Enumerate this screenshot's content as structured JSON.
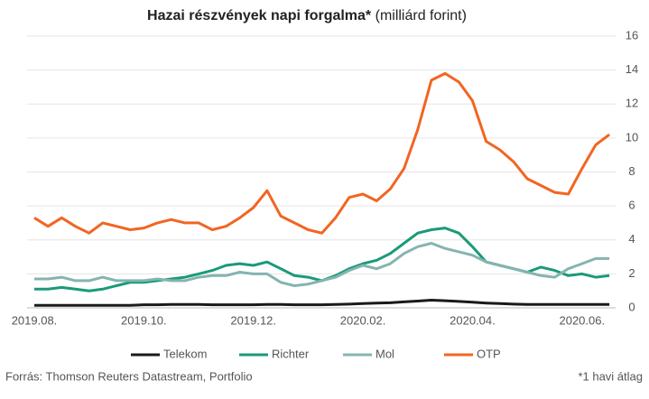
{
  "chart_data": {
    "type": "line",
    "title": "Hazai részvények napi forgalma*",
    "subtitle": "(milliárd forint)",
    "source": "Forrás: Thomson Reuters Datastream, Portfolio",
    "note": "*1 havi átlag",
    "categories": [
      "2019.08.",
      null,
      null,
      null,
      null,
      null,
      null,
      null,
      "2019.10.",
      null,
      null,
      null,
      null,
      null,
      null,
      null,
      "2019.12.",
      null,
      null,
      null,
      null,
      null,
      null,
      null,
      "2020.02.",
      null,
      null,
      null,
      null,
      null,
      null,
      null,
      "2020.04.",
      null,
      null,
      null,
      null,
      null,
      null,
      null,
      "2020.06.",
      null,
      null
    ],
    "series": [
      {
        "name": "Telekom",
        "color": "#1a1a1a",
        "values": [
          0.15,
          0.15,
          0.15,
          0.15,
          0.15,
          0.15,
          0.15,
          0.15,
          0.18,
          0.18,
          0.2,
          0.2,
          0.2,
          0.18,
          0.18,
          0.18,
          0.18,
          0.2,
          0.2,
          0.18,
          0.18,
          0.18,
          0.2,
          0.22,
          0.25,
          0.28,
          0.3,
          0.35,
          0.4,
          0.45,
          0.42,
          0.38,
          0.33,
          0.28,
          0.25,
          0.22,
          0.2,
          0.2,
          0.2,
          0.2,
          0.2,
          0.2,
          0.2
        ]
      },
      {
        "name": "Richter",
        "color": "#1a9a78",
        "values": [
          1.1,
          1.1,
          1.2,
          1.1,
          1.0,
          1.1,
          1.3,
          1.5,
          1.5,
          1.6,
          1.7,
          1.8,
          2.0,
          2.2,
          2.5,
          2.6,
          2.5,
          2.7,
          2.3,
          1.9,
          1.8,
          1.6,
          1.9,
          2.3,
          2.6,
          2.8,
          3.2,
          3.8,
          4.4,
          4.6,
          4.7,
          4.4,
          3.6,
          2.7,
          2.5,
          2.3,
          2.1,
          2.4,
          2.2,
          1.9,
          2.0,
          1.8,
          1.9
        ]
      },
      {
        "name": "Mol",
        "color": "#84b4b0",
        "values": [
          1.7,
          1.7,
          1.8,
          1.6,
          1.6,
          1.8,
          1.6,
          1.6,
          1.6,
          1.7,
          1.6,
          1.6,
          1.8,
          1.9,
          1.9,
          2.1,
          2.0,
          2.0,
          1.5,
          1.3,
          1.4,
          1.6,
          1.8,
          2.2,
          2.5,
          2.3,
          2.6,
          3.2,
          3.6,
          3.8,
          3.5,
          3.3,
          3.1,
          2.7,
          2.5,
          2.3,
          2.1,
          1.9,
          1.8,
          2.3,
          2.6,
          2.9,
          2.9
        ]
      },
      {
        "name": "OTP",
        "color": "#f26522",
        "values": [
          5.3,
          4.8,
          5.3,
          4.8,
          4.4,
          5.0,
          4.8,
          4.6,
          4.7,
          5.0,
          5.2,
          5.0,
          5.0,
          4.6,
          4.8,
          5.3,
          5.9,
          6.9,
          5.4,
          5.0,
          4.6,
          4.4,
          5.3,
          6.5,
          6.7,
          6.3,
          7.0,
          8.2,
          10.5,
          13.4,
          13.8,
          13.3,
          12.2,
          9.8,
          9.3,
          8.6,
          7.6,
          7.2,
          6.8,
          6.7,
          8.2,
          9.6,
          10.2
        ]
      }
    ],
    "ylim": [
      0,
      16
    ],
    "yticks": [
      0,
      2,
      4,
      6,
      8,
      10,
      12,
      14,
      16
    ],
    "grid": true
  }
}
